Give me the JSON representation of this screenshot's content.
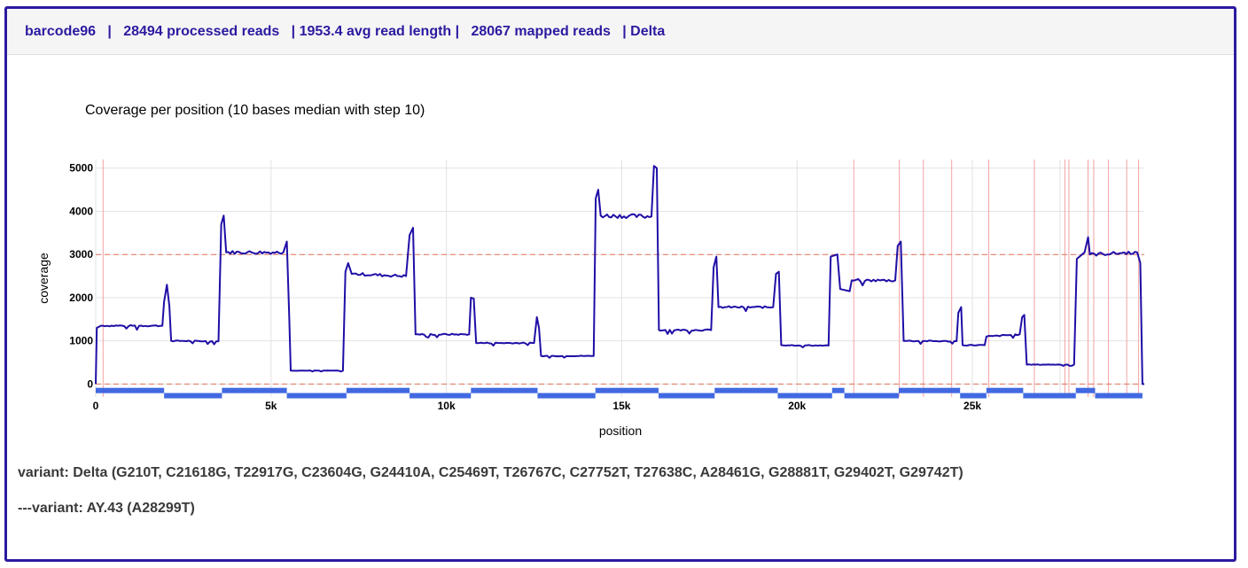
{
  "header": {
    "summary": "barcode96   |   28494 processed reads   | 1953.4 avg read length |   28067 mapped reads   | Delta"
  },
  "colors": {
    "accent": "#2b1aa0",
    "coverage_line": "#1f0ea6",
    "variant_lines": "#f4a3a3",
    "threshold_lines": "#e8735a",
    "amplicons": "#4169e1"
  },
  "chart_data": {
    "type": "line",
    "title": "Coverage per position (10 bases median with step 10)",
    "xlabel": "position",
    "ylabel": "coverage",
    "xlim": [
      0,
      29903
    ],
    "ylim": [
      -300,
      5200
    ],
    "x_ticks": [
      0,
      5000,
      10000,
      15000,
      20000,
      25000
    ],
    "x_tick_labels": [
      "0",
      "5k",
      "10k",
      "15k",
      "20k",
      "25k"
    ],
    "y_ticks": [
      0,
      1000,
      2000,
      3000,
      4000,
      5000
    ],
    "y_tick_labels": [
      "0",
      "1000",
      "2000",
      "3000",
      "4000",
      "5000"
    ],
    "grid": true,
    "threshold_lines": [
      3000,
      0
    ],
    "variant_positions": [
      210,
      21618,
      22917,
      23604,
      24410,
      25469,
      26767,
      27638,
      27752,
      28299,
      28461,
      28881,
      29402,
      29742
    ],
    "series": [
      {
        "values": [
          [
            0,
            0
          ],
          [
            30,
            1300
          ],
          [
            150,
            1350
          ],
          [
            1900,
            1350
          ],
          [
            1950,
            1900
          ],
          [
            2030,
            2300
          ],
          [
            2100,
            1800
          ],
          [
            2150,
            1000
          ],
          [
            3500,
            990
          ],
          [
            3580,
            3700
          ],
          [
            3650,
            3900
          ],
          [
            3720,
            3050
          ],
          [
            5350,
            3050
          ],
          [
            5450,
            3300
          ],
          [
            5520,
            1500
          ],
          [
            5560,
            310
          ],
          [
            7050,
            310
          ],
          [
            7120,
            2600
          ],
          [
            7200,
            2800
          ],
          [
            7300,
            2550
          ],
          [
            8850,
            2500
          ],
          [
            8950,
            3450
          ],
          [
            9050,
            3620
          ],
          [
            9120,
            1150
          ],
          [
            10650,
            1150
          ],
          [
            10700,
            2000
          ],
          [
            10780,
            1980
          ],
          [
            10850,
            950
          ],
          [
            12500,
            950
          ],
          [
            12580,
            1550
          ],
          [
            12640,
            1300
          ],
          [
            12700,
            650
          ],
          [
            14200,
            650
          ],
          [
            14260,
            4300
          ],
          [
            14330,
            4500
          ],
          [
            14400,
            3900
          ],
          [
            15850,
            3880
          ],
          [
            15920,
            5050
          ],
          [
            16000,
            5000
          ],
          [
            16060,
            1250
          ],
          [
            17550,
            1250
          ],
          [
            17620,
            2700
          ],
          [
            17700,
            2950
          ],
          [
            17760,
            1780
          ],
          [
            19320,
            1780
          ],
          [
            19400,
            2550
          ],
          [
            19480,
            2600
          ],
          [
            19550,
            900
          ],
          [
            20900,
            890
          ],
          [
            20960,
            2950
          ],
          [
            21150,
            3000
          ],
          [
            21230,
            2200
          ],
          [
            21500,
            2150
          ],
          [
            21560,
            2400
          ],
          [
            22800,
            2400
          ],
          [
            22870,
            3200
          ],
          [
            22960,
            3300
          ],
          [
            23040,
            1000
          ],
          [
            24550,
            990
          ],
          [
            24600,
            1650
          ],
          [
            24680,
            1780
          ],
          [
            24720,
            900
          ],
          [
            25350,
            900
          ],
          [
            25400,
            1100
          ],
          [
            26350,
            1150
          ],
          [
            26420,
            1550
          ],
          [
            26480,
            1600
          ],
          [
            26550,
            450
          ],
          [
            27900,
            450
          ],
          [
            27980,
            2900
          ],
          [
            28200,
            3050
          ],
          [
            28300,
            3400
          ],
          [
            28350,
            3000
          ],
          [
            29700,
            3050
          ],
          [
            29790,
            2800
          ],
          [
            29850,
            0
          ],
          [
            29903,
            0
          ]
        ]
      }
    ],
    "amplicon_pool_1": [
      [
        0,
        1950
      ],
      [
        3600,
        5450
      ],
      [
        7150,
        8950
      ],
      [
        10700,
        12600
      ],
      [
        14250,
        16050
      ],
      [
        17650,
        19450
      ],
      [
        21000,
        21350
      ],
      [
        22900,
        24650
      ],
      [
        25400,
        26450
      ],
      [
        27950,
        28500
      ]
    ],
    "amplicon_pool_2": [
      [
        1950,
        3600
      ],
      [
        5450,
        7150
      ],
      [
        8950,
        10700
      ],
      [
        12600,
        14250
      ],
      [
        16050,
        17650
      ],
      [
        19450,
        21000
      ],
      [
        21350,
        22900
      ],
      [
        24650,
        25400
      ],
      [
        26450,
        27950
      ],
      [
        28500,
        29850
      ]
    ]
  },
  "variants": {
    "main": "variant: Delta (G210T, C21618G, T22917G, C23604G, G24410A, C25469T, T26767C, C27752T, T27638C, A28461G, G28881T, G29402T, G29742T)",
    "sub": "---variant: AY.43 (A28299T)"
  }
}
